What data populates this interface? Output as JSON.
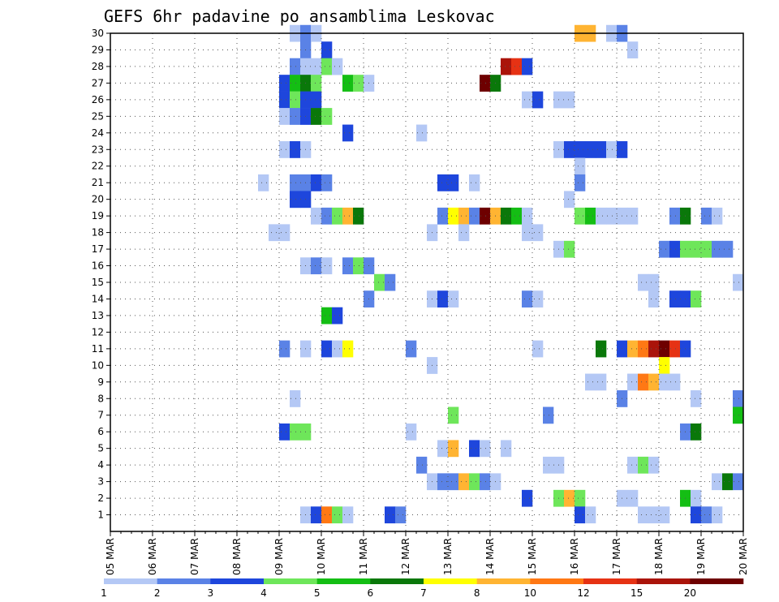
{
  "chart_data": {
    "type": "heatmap",
    "title": "GEFS 6hr padavine po ansamblima Leskovac",
    "xlabel": "",
    "ylabel": "",
    "x_tick_labels": [
      "05 MAR",
      "06 MAR",
      "07 MAR",
      "08 MAR",
      "09 MAR",
      "10 MAR",
      "11 MAR",
      "12 MAR",
      "13 MAR",
      "14 MAR",
      "15 MAR",
      "16 MAR",
      "17 MAR",
      "18 MAR",
      "19 MAR",
      "20 MAR"
    ],
    "x_range_days": [
      5,
      20
    ],
    "y_tick_labels": [
      "1",
      "2",
      "3",
      "4",
      "5",
      "6",
      "7",
      "8",
      "9",
      "10",
      "11",
      "12",
      "13",
      "14",
      "15",
      "16",
      "17",
      "18",
      "19",
      "20",
      "21",
      "22",
      "23",
      "24",
      "25",
      "26",
      "27",
      "28",
      "29",
      "30"
    ],
    "y_range": [
      0,
      30
    ],
    "grid": true,
    "legend": {
      "placement": "bottom",
      "labels": [
        "1",
        "2",
        "3",
        "4",
        "5",
        "6",
        "7",
        "8",
        "10",
        "12",
        "15",
        "20"
      ],
      "colors": [
        "#b4c8f5",
        "#5a82e6",
        "#1e46dc",
        "#6ee65a",
        "#14be14",
        "#0a780a",
        "#ffff00",
        "#ffb432",
        "#ff7814",
        "#e63214",
        "#aa140a",
        "#6e0000"
      ]
    },
    "cells": [
      [
        30,
        9.25,
        1
      ],
      [
        30,
        9.5,
        2
      ],
      [
        30,
        9.75,
        1
      ],
      [
        30,
        16.0,
        8
      ],
      [
        30,
        16.25,
        8
      ],
      [
        30,
        16.75,
        1
      ],
      [
        30,
        17.0,
        2
      ],
      [
        29,
        9.5,
        2
      ],
      [
        29,
        10.0,
        3
      ],
      [
        29,
        17.25,
        1
      ],
      [
        28,
        9.25,
        2
      ],
      [
        28,
        9.5,
        1
      ],
      [
        28,
        9.75,
        1
      ],
      [
        28,
        10.0,
        4
      ],
      [
        28,
        10.25,
        1
      ],
      [
        28,
        14.25,
        11
      ],
      [
        28,
        14.5,
        10
      ],
      [
        28,
        14.75,
        3
      ],
      [
        27,
        9.0,
        3
      ],
      [
        27,
        9.25,
        5
      ],
      [
        27,
        9.5,
        6
      ],
      [
        27,
        9.75,
        4
      ],
      [
        27,
        10.5,
        5
      ],
      [
        27,
        10.75,
        4
      ],
      [
        27,
        11.0,
        1
      ],
      [
        27,
        13.75,
        12
      ],
      [
        27,
        14.0,
        6
      ],
      [
        26,
        9.0,
        3
      ],
      [
        26,
        9.25,
        4
      ],
      [
        26,
        9.5,
        3
      ],
      [
        26,
        9.75,
        3
      ],
      [
        26,
        14.75,
        1
      ],
      [
        26,
        15.0,
        3
      ],
      [
        26,
        15.5,
        1
      ],
      [
        26,
        15.75,
        1
      ],
      [
        25,
        9.0,
        1
      ],
      [
        25,
        9.25,
        2
      ],
      [
        25,
        9.5,
        3
      ],
      [
        25,
        9.75,
        6
      ],
      [
        25,
        10.0,
        4
      ],
      [
        24,
        10.5,
        3
      ],
      [
        24,
        12.25,
        1
      ],
      [
        23,
        9.0,
        1
      ],
      [
        23,
        9.25,
        3
      ],
      [
        23,
        9.5,
        1
      ],
      [
        23,
        15.5,
        1
      ],
      [
        23,
        15.75,
        3
      ],
      [
        23,
        16.0,
        3
      ],
      [
        23,
        16.25,
        3
      ],
      [
        23,
        16.5,
        3
      ],
      [
        23,
        16.75,
        1
      ],
      [
        23,
        17.0,
        3
      ],
      [
        22,
        16.0,
        1
      ],
      [
        21,
        8.5,
        1
      ],
      [
        21,
        9.25,
        2
      ],
      [
        21,
        9.5,
        2
      ],
      [
        21,
        9.75,
        3
      ],
      [
        21,
        10.0,
        2
      ],
      [
        21,
        12.75,
        3
      ],
      [
        21,
        13.0,
        3
      ],
      [
        21,
        13.5,
        1
      ],
      [
        21,
        16.0,
        2
      ],
      [
        20,
        9.25,
        3
      ],
      [
        20,
        9.5,
        3
      ],
      [
        20,
        15.75,
        1
      ],
      [
        19,
        9.75,
        1
      ],
      [
        19,
        10.0,
        2
      ],
      [
        19,
        10.25,
        4
      ],
      [
        19,
        10.5,
        8
      ],
      [
        19,
        10.75,
        6
      ],
      [
        19,
        12.75,
        2
      ],
      [
        19,
        13.0,
        7
      ],
      [
        19,
        13.25,
        8
      ],
      [
        19,
        13.5,
        2
      ],
      [
        19,
        13.75,
        12
      ],
      [
        19,
        14.0,
        8
      ],
      [
        19,
        14.25,
        6
      ],
      [
        19,
        14.5,
        5
      ],
      [
        19,
        14.75,
        1
      ],
      [
        19,
        16.0,
        4
      ],
      [
        19,
        16.25,
        5
      ],
      [
        19,
        16.5,
        1
      ],
      [
        19,
        16.75,
        1
      ],
      [
        19,
        17.0,
        1
      ],
      [
        19,
        17.25,
        1
      ],
      [
        19,
        18.25,
        2
      ],
      [
        19,
        18.5,
        6
      ],
      [
        19,
        19.0,
        2
      ],
      [
        19,
        19.25,
        1
      ],
      [
        18,
        8.75,
        1
      ],
      [
        18,
        9.0,
        1
      ],
      [
        18,
        12.5,
        1
      ],
      [
        18,
        13.25,
        1
      ],
      [
        18,
        14.75,
        1
      ],
      [
        18,
        15.0,
        1
      ],
      [
        17,
        15.5,
        1
      ],
      [
        17,
        15.75,
        4
      ],
      [
        17,
        18.0,
        2
      ],
      [
        17,
        18.25,
        3
      ],
      [
        17,
        18.5,
        4
      ],
      [
        17,
        18.75,
        4
      ],
      [
        17,
        19.0,
        4
      ],
      [
        17,
        19.25,
        2
      ],
      [
        17,
        19.5,
        2
      ],
      [
        16,
        9.5,
        1
      ],
      [
        16,
        9.75,
        2
      ],
      [
        16,
        10.0,
        1
      ],
      [
        16,
        10.5,
        2
      ],
      [
        16,
        10.75,
        4
      ],
      [
        16,
        11.0,
        2
      ],
      [
        15,
        11.25,
        4
      ],
      [
        15,
        11.5,
        2
      ],
      [
        15,
        17.5,
        1
      ],
      [
        15,
        17.75,
        1
      ],
      [
        15,
        19.75,
        1
      ],
      [
        14,
        11.0,
        2
      ],
      [
        14,
        12.5,
        1
      ],
      [
        14,
        12.75,
        3
      ],
      [
        14,
        13.0,
        1
      ],
      [
        14,
        14.75,
        2
      ],
      [
        14,
        15.0,
        1
      ],
      [
        14,
        17.75,
        1
      ],
      [
        14,
        18.25,
        3
      ],
      [
        14,
        18.5,
        3
      ],
      [
        14,
        18.75,
        4
      ],
      [
        13,
        10.0,
        5
      ],
      [
        13,
        10.25,
        3
      ],
      [
        11,
        9.0,
        2
      ],
      [
        11,
        9.5,
        1
      ],
      [
        11,
        10.0,
        3
      ],
      [
        11,
        10.25,
        1
      ],
      [
        11,
        10.5,
        7
      ],
      [
        11,
        12.0,
        2
      ],
      [
        11,
        15.0,
        1
      ],
      [
        11,
        16.5,
        6
      ],
      [
        11,
        17.0,
        3
      ],
      [
        11,
        17.25,
        8
      ],
      [
        11,
        17.5,
        9
      ],
      [
        11,
        17.75,
        11
      ],
      [
        11,
        18.0,
        12
      ],
      [
        11,
        18.25,
        10
      ],
      [
        11,
        18.5,
        3
      ],
      [
        10,
        18.0,
        7
      ],
      [
        10,
        12.5,
        1
      ],
      [
        9,
        16.25,
        1
      ],
      [
        9,
        16.5,
        1
      ],
      [
        9,
        17.25,
        1
      ],
      [
        9,
        17.5,
        9
      ],
      [
        9,
        17.75,
        8
      ],
      [
        9,
        18.0,
        1
      ],
      [
        9,
        18.25,
        1
      ],
      [
        8,
        9.25,
        1
      ],
      [
        8,
        17.0,
        2
      ],
      [
        8,
        18.75,
        1
      ],
      [
        8,
        19.75,
        2
      ],
      [
        7,
        13.0,
        4
      ],
      [
        7,
        15.25,
        2
      ],
      [
        7,
        19.75,
        5
      ],
      [
        6,
        9.0,
        3
      ],
      [
        6,
        9.25,
        4
      ],
      [
        6,
        9.5,
        4
      ],
      [
        6,
        12.0,
        1
      ],
      [
        6,
        18.5,
        2
      ],
      [
        6,
        18.75,
        6
      ],
      [
        5,
        12.75,
        1
      ],
      [
        5,
        13.0,
        8
      ],
      [
        5,
        13.5,
        3
      ],
      [
        5,
        13.75,
        1
      ],
      [
        5,
        14.25,
        1
      ],
      [
        4,
        12.25,
        2
      ],
      [
        4,
        15.25,
        1
      ],
      [
        4,
        15.5,
        1
      ],
      [
        4,
        17.25,
        1
      ],
      [
        4,
        17.5,
        4
      ],
      [
        4,
        17.75,
        1
      ],
      [
        3,
        12.5,
        1
      ],
      [
        3,
        12.75,
        2
      ],
      [
        3,
        13.0,
        2
      ],
      [
        3,
        13.25,
        8
      ],
      [
        3,
        13.5,
        4
      ],
      [
        3,
        13.75,
        2
      ],
      [
        3,
        14.0,
        1
      ],
      [
        3,
        19.25,
        1
      ],
      [
        3,
        19.5,
        6
      ],
      [
        3,
        19.75,
        2
      ],
      [
        2,
        14.75,
        3
      ],
      [
        2,
        15.5,
        4
      ],
      [
        2,
        15.75,
        8
      ],
      [
        2,
        16.0,
        4
      ],
      [
        2,
        17.0,
        1
      ],
      [
        2,
        17.25,
        1
      ],
      [
        2,
        18.5,
        5
      ],
      [
        2,
        18.75,
        1
      ],
      [
        1,
        9.5,
        1
      ],
      [
        1,
        9.75,
        3
      ],
      [
        1,
        10.0,
        9
      ],
      [
        1,
        10.25,
        4
      ],
      [
        1,
        10.5,
        1
      ],
      [
        1,
        11.5,
        3
      ],
      [
        1,
        11.75,
        2
      ],
      [
        1,
        16.0,
        3
      ],
      [
        1,
        16.25,
        1
      ],
      [
        1,
        17.5,
        1
      ],
      [
        1,
        17.75,
        1
      ],
      [
        1,
        18.0,
        1
      ],
      [
        1,
        18.75,
        3
      ],
      [
        1,
        19.0,
        2
      ],
      [
        1,
        19.25,
        1
      ]
    ]
  }
}
